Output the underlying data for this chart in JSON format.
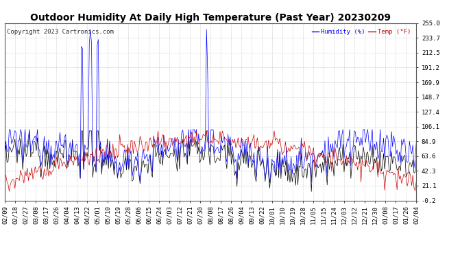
{
  "title": "Outdoor Humidity At Daily High Temperature (Past Year) 20230209",
  "copyright": "Copyright 2023 Cartronics.com",
  "legend_humidity": "Humidity (%)",
  "legend_temp": "Temp (°F)",
  "ylim": [
    -0.2,
    255.0
  ],
  "yticks": [
    255.0,
    233.7,
    212.5,
    191.2,
    169.9,
    148.7,
    127.4,
    106.1,
    84.9,
    63.6,
    42.3,
    21.1,
    -0.2
  ],
  "ytick_labels": [
    "255.0",
    "233.7",
    "212.5",
    "191.2",
    "169.9",
    "148.7",
    "127.4",
    "106.1",
    "84.9",
    "63.6",
    "42.3",
    "21.1",
    "-0.2"
  ],
  "xtick_labels": [
    "02/09",
    "02/18",
    "02/27",
    "03/08",
    "03/17",
    "03/26",
    "04/04",
    "04/13",
    "04/22",
    "05/01",
    "05/10",
    "05/19",
    "05/28",
    "06/06",
    "06/15",
    "06/24",
    "07/03",
    "07/12",
    "07/21",
    "07/30",
    "08/08",
    "08/17",
    "08/26",
    "09/04",
    "09/13",
    "09/22",
    "10/01",
    "10/10",
    "10/19",
    "10/28",
    "11/05",
    "11/15",
    "11/24",
    "12/03",
    "12/12",
    "12/21",
    "12/30",
    "01/08",
    "01/17",
    "01/26",
    "02/04"
  ],
  "bg_color": "#ffffff",
  "grid_color": "#aaaaaa",
  "humidity_color": "#0000ff",
  "temp_color": "#cc0000",
  "black_color": "#000000",
  "title_fontsize": 10,
  "copyright_fontsize": 6.5,
  "axis_fontsize": 6.5
}
